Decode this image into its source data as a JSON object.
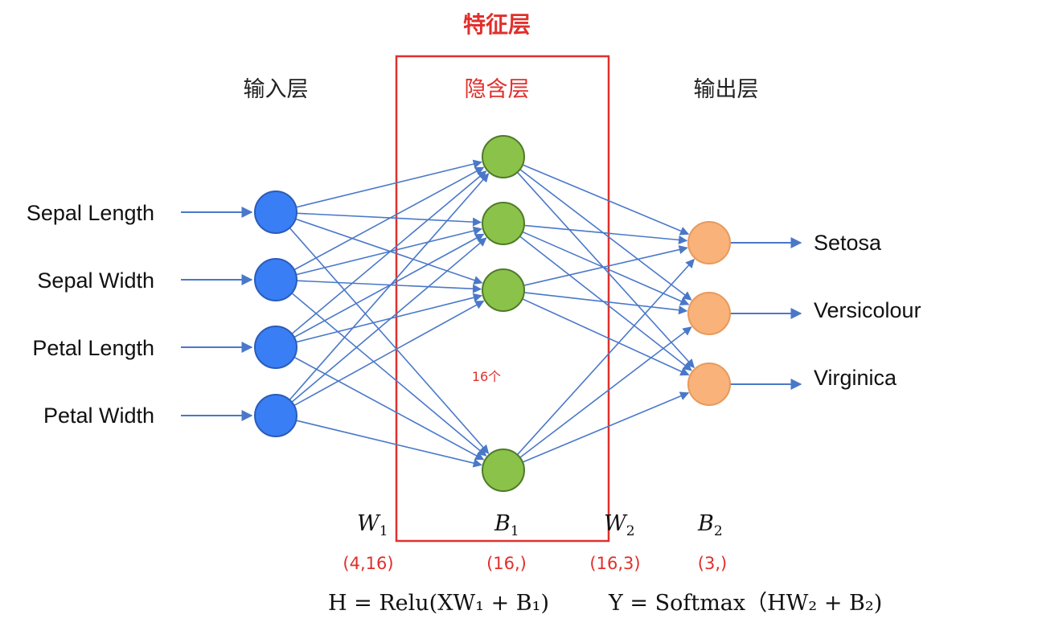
{
  "title": "特征层",
  "layers": {
    "input": "输入层",
    "hidden": "隐含层",
    "output": "输出层"
  },
  "input_labels": [
    "Sepal Length",
    "Sepal Width",
    "Petal Length",
    "Petal Width"
  ],
  "output_labels": [
    "Setosa",
    "Versicolour",
    "Virginica"
  ],
  "hidden_count": "16个",
  "params": {
    "w1": {
      "symbol": "W",
      "sub": "1",
      "shape": "(4,16)"
    },
    "b1": {
      "symbol": "B",
      "sub": "1",
      "shape": "(16,)"
    },
    "w2": {
      "symbol": "W",
      "sub": "2",
      "shape": "(16,3)"
    },
    "b2": {
      "symbol": "B",
      "sub": "2",
      "shape": "(3,)"
    }
  },
  "formulas": {
    "hidden": "H = Relu(XW₁ + B₁)",
    "output": "Y = Softmax（HW₂ + B₂)"
  },
  "colors": {
    "input_node": "#3a7ef5",
    "hidden_node": "#8bc34a",
    "output_node": "#f8b27a",
    "edge": "#4a78c9",
    "highlight": "#e0302c"
  }
}
